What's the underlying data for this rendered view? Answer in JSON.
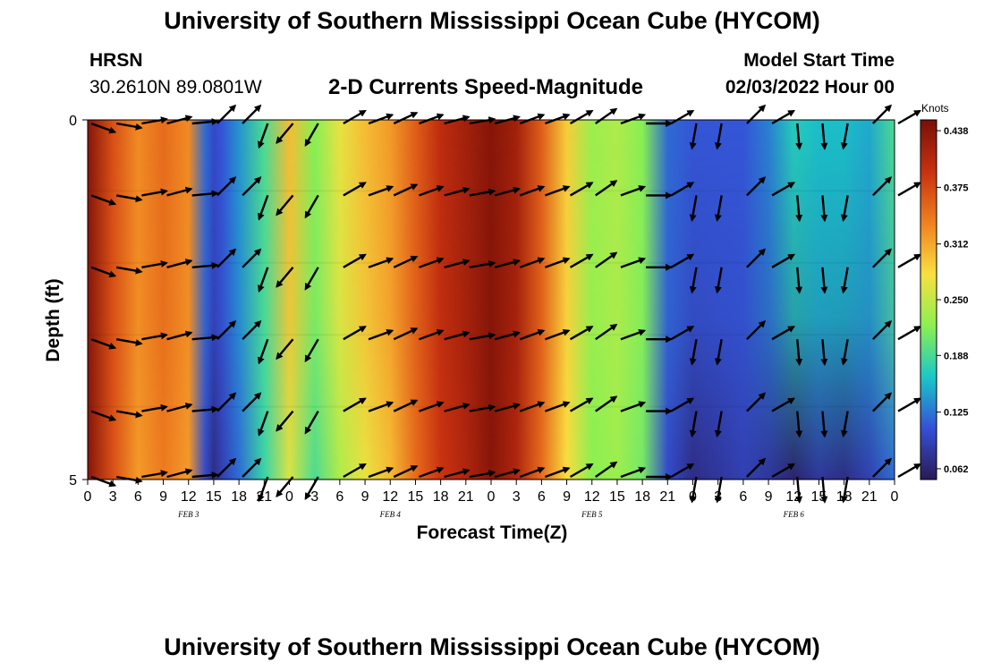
{
  "page": {
    "title": "University of Southern Mississippi Ocean Cube (HYCOM)",
    "footer_title": "University of Southern Mississippi Ocean Cube (HYCOM)"
  },
  "header": {
    "station": "HRSN",
    "coords": "30.2610N  89.0801W",
    "subtitle": "2-D Currents Speed-Magnitude",
    "model_label": "Model Start Time",
    "model_time": "02/03/2022 Hour 00"
  },
  "colors": {
    "stops": [
      "#2a1a55",
      "#3550d8",
      "#19c8c8",
      "#8cf050",
      "#f8e040",
      "#f08020",
      "#c83010",
      "#781008"
    ],
    "arrow": "#000000"
  },
  "chart_data": {
    "type": "heatmap",
    "title": "2-D Currents Speed-Magnitude",
    "xlabel": "Forecast Time(Z)",
    "ylabel": "Depth (ft)",
    "xlim": [
      0,
      96
    ],
    "ylim": [
      0,
      5
    ],
    "x_tick_labels": [
      "0",
      "3",
      "6",
      "9",
      "12",
      "15",
      "18",
      "21",
      "0",
      "3",
      "6",
      "9",
      "12",
      "15",
      "18",
      "21",
      "0",
      "3",
      "6",
      "9",
      "12",
      "15",
      "18",
      "21",
      "0",
      "3",
      "6",
      "9",
      "12",
      "15",
      "18",
      "21",
      "0"
    ],
    "y_tick_labels": [
      "0",
      "5"
    ],
    "day_labels": [
      "FEB 3",
      "FEB 4",
      "FEB 5",
      "FEB 6"
    ],
    "colorbar": {
      "unit": "Knots",
      "range": [
        0.05,
        0.45
      ],
      "ticks": [
        "0.438",
        "0.375",
        "0.312",
        "0.250",
        "0.188",
        "0.125",
        "0.062"
      ]
    },
    "hours": [
      0,
      3,
      6,
      9,
      12,
      14,
      15,
      16,
      18,
      21,
      24,
      27,
      30,
      33,
      36,
      39,
      42,
      45,
      48,
      51,
      54,
      57,
      60,
      63,
      66,
      69,
      72,
      75,
      78,
      81,
      84,
      87,
      90,
      93,
      96
    ],
    "speed_surface": [
      0.44,
      0.37,
      0.33,
      0.35,
      0.33,
      0.12,
      0.1,
      0.11,
      0.14,
      0.19,
      0.3,
      0.22,
      0.27,
      0.3,
      0.32,
      0.36,
      0.4,
      0.42,
      0.44,
      0.42,
      0.36,
      0.29,
      0.23,
      0.24,
      0.22,
      0.12,
      0.11,
      0.11,
      0.11,
      0.13,
      0.17,
      0.16,
      0.16,
      0.15,
      0.19
    ],
    "speed_bottom": [
      0.44,
      0.37,
      0.32,
      0.34,
      0.32,
      0.1,
      0.07,
      0.09,
      0.12,
      0.18,
      0.26,
      0.19,
      0.24,
      0.27,
      0.3,
      0.35,
      0.39,
      0.41,
      0.44,
      0.41,
      0.35,
      0.28,
      0.22,
      0.23,
      0.21,
      0.1,
      0.07,
      0.08,
      0.09,
      0.08,
      0.06,
      0.08,
      0.07,
      0.09,
      0.12
    ],
    "arrow_hours": [
      0,
      3,
      6,
      9,
      12,
      15,
      18,
      21,
      24,
      27,
      30,
      33,
      36,
      39,
      42,
      45,
      48,
      51,
      54,
      57,
      60,
      63,
      66,
      69,
      72,
      75,
      78,
      81,
      84,
      87,
      90,
      93,
      96
    ],
    "arrow_depths": [
      0,
      1,
      2,
      3,
      4,
      5
    ],
    "arrow_direction_deg": [
      110,
      100,
      80,
      75,
      85,
      45,
      45,
      200,
      220,
      210,
      60,
      70,
      65,
      70,
      75,
      80,
      75,
      70,
      70,
      60,
      55,
      70,
      90,
      60,
      190,
      190,
      45,
      60,
      175,
      175,
      190,
      45,
      60
    ]
  }
}
